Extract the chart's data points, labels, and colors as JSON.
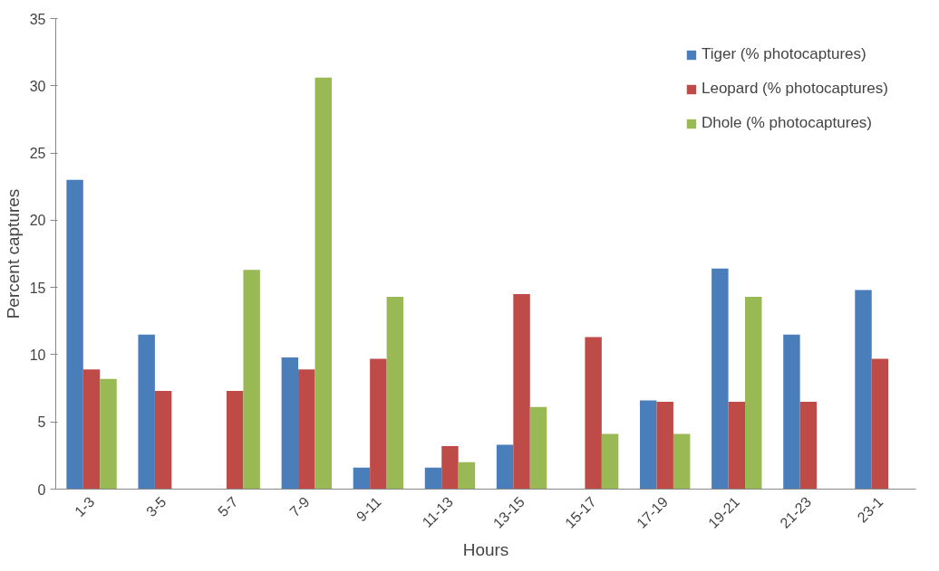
{
  "chart_data": {
    "type": "bar",
    "xlabel": "Hours",
    "ylabel": "Percent captures",
    "categories": [
      "1-3",
      "3-5",
      "5-7",
      "7-9",
      "9-11",
      "11-13",
      "13-15",
      "15-17",
      "17-19",
      "19-21",
      "21-23",
      "23-1"
    ],
    "series": [
      {
        "name": "Tiger (% photocaptures)",
        "color": "#4a7ebb",
        "values": [
          23,
          11.5,
          0,
          9.8,
          1.6,
          1.6,
          3.3,
          0,
          6.6,
          16.4,
          11.5,
          14.8
        ]
      },
      {
        "name": "Leopard (% photocaptures)",
        "color": "#be4b48",
        "values": [
          8.9,
          7.3,
          7.3,
          8.9,
          9.7,
          3.2,
          14.5,
          11.3,
          6.5,
          6.5,
          6.5,
          9.7
        ]
      },
      {
        "name": "Dhole (% photocaptures)",
        "color": "#98b954",
        "values": [
          8.2,
          0,
          16.3,
          30.6,
          14.3,
          2.0,
          6.1,
          4.1,
          4.1,
          14.3,
          0,
          0
        ]
      }
    ],
    "ylim": [
      0,
      35
    ],
    "yticks": [
      0,
      5,
      10,
      15,
      20,
      25,
      30,
      35
    ],
    "grid": false,
    "legend": "top right"
  }
}
